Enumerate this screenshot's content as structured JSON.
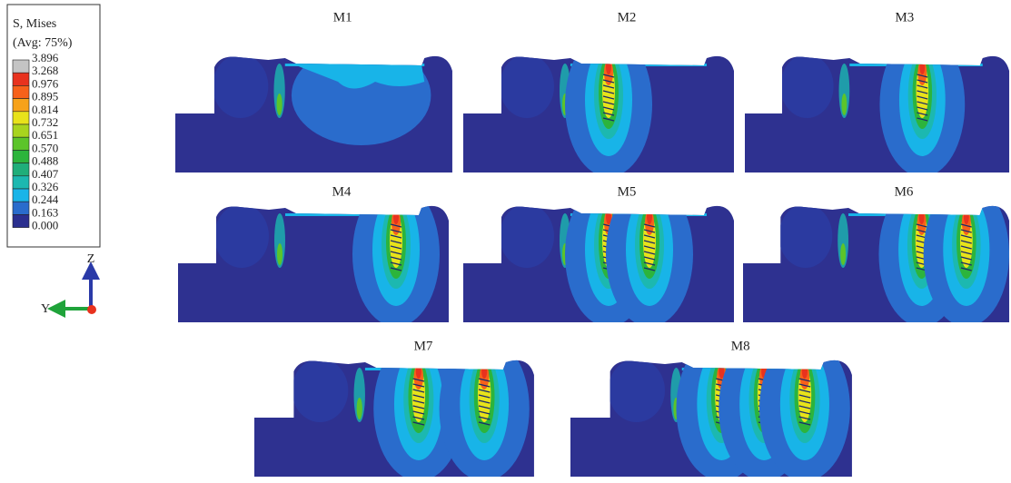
{
  "legend": {
    "title": "S, Mises",
    "subtitle": "(Avg: 75%)",
    "labels": [
      "3.896",
      "3.268",
      "0.976",
      "0.895",
      "0.814",
      "0.732",
      "0.651",
      "0.570",
      "0.488",
      "0.407",
      "0.326",
      "0.244",
      "0.163",
      "0.000"
    ],
    "colors": [
      "#c4c4c4",
      "#e8321e",
      "#f7611a",
      "#f7a21a",
      "#e8e21a",
      "#a8d41e",
      "#5cc42a",
      "#2cb43c",
      "#1fae7a",
      "#1cb8b0",
      "#18b4e8",
      "#2a6ccc",
      "#2b2f8f"
    ]
  },
  "axes": {
    "z": "Z",
    "y": "Y"
  },
  "panels": [
    {
      "label": "M1"
    },
    {
      "label": "M2"
    },
    {
      "label": "M3"
    },
    {
      "label": "M4"
    },
    {
      "label": "M5"
    },
    {
      "label": "M6"
    },
    {
      "label": "M7"
    },
    {
      "label": "M8"
    }
  ]
}
